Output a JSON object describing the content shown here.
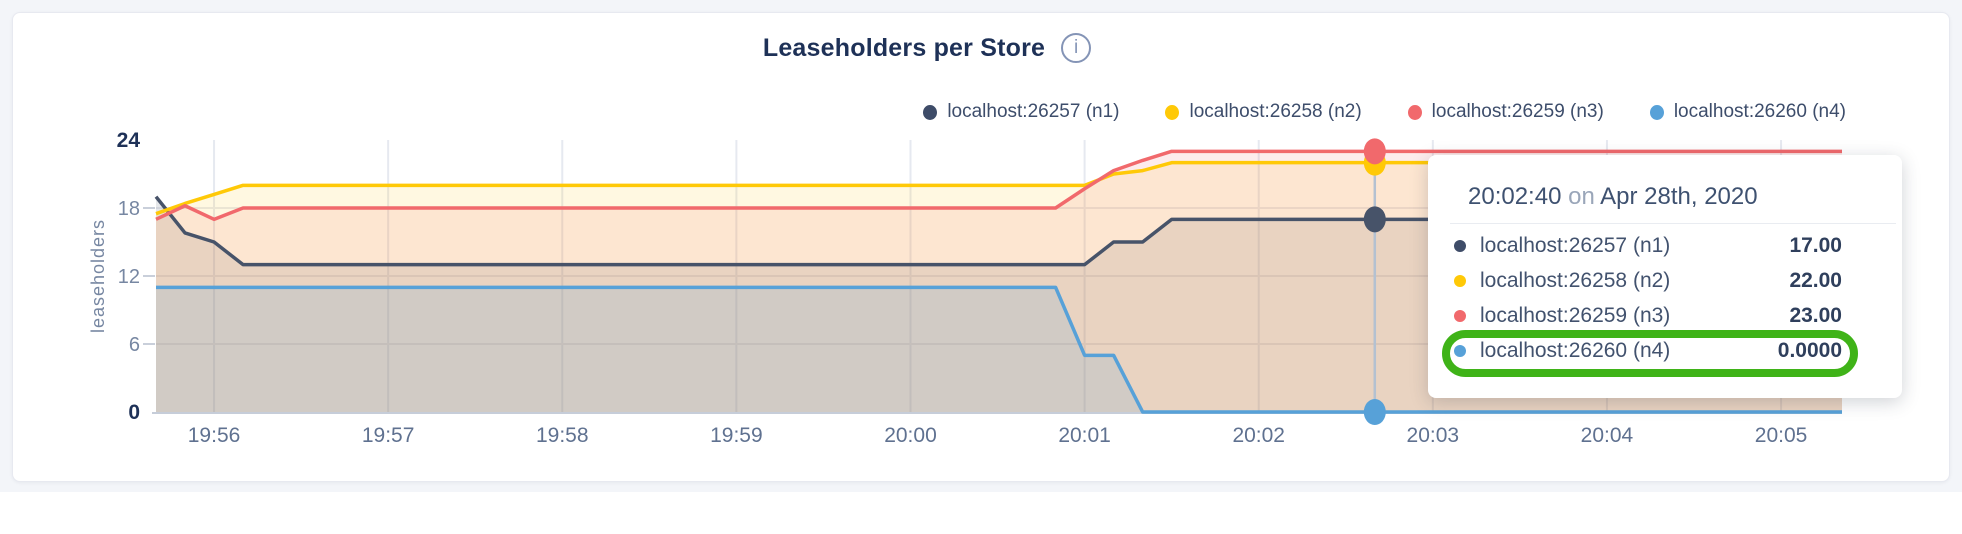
{
  "page": {
    "background": "#f3f5f9"
  },
  "header": {
    "title": "Leaseholders per Store",
    "info_icon": "i"
  },
  "legend": {
    "items": [
      {
        "label": "localhost:26257 (n1)",
        "color": "#3e4c68"
      },
      {
        "label": "localhost:26258 (n2)",
        "color": "#ffc907"
      },
      {
        "label": "localhost:26259 (n3)",
        "color": "#f1696c"
      },
      {
        "label": "localhost:26260 (n4)",
        "color": "#57a1d8"
      }
    ]
  },
  "chart_data": {
    "type": "area",
    "title": "Leaseholders per Store",
    "ylabel": "leaseholders",
    "ylim": [
      0,
      24
    ],
    "grid_on": true,
    "legend_position": "top-right",
    "x_start_time": "19:55:40",
    "x_domain_seconds": [
      0,
      581
    ],
    "y_ticks": [
      {
        "v": 24,
        "label": "24",
        "bold": true
      },
      {
        "v": 18,
        "label": "18",
        "bold": false
      },
      {
        "v": 12,
        "label": "12",
        "bold": false
      },
      {
        "v": 6,
        "label": "6",
        "bold": false
      },
      {
        "v": 0,
        "label": "0",
        "bold": true
      }
    ],
    "grid_y": [
      6,
      12,
      18
    ],
    "x_ticks": [
      {
        "t": 20,
        "label": "19:56"
      },
      {
        "t": 80,
        "label": "19:57"
      },
      {
        "t": 140,
        "label": "19:58"
      },
      {
        "t": 200,
        "label": "19:59"
      },
      {
        "t": 260,
        "label": "20:00"
      },
      {
        "t": 320,
        "label": "20:01"
      },
      {
        "t": 380,
        "label": "20:02"
      },
      {
        "t": 440,
        "label": "20:03"
      },
      {
        "t": 500,
        "label": "20:04"
      },
      {
        "t": 560,
        "label": "20:05"
      }
    ],
    "series": [
      {
        "name": "localhost:26257 (n1)",
        "color": "#475369",
        "fill_opacity": 0.14,
        "points": [
          [
            0,
            19
          ],
          [
            10,
            15.8
          ],
          [
            20,
            15
          ],
          [
            30,
            13
          ],
          [
            320,
            13
          ],
          [
            330,
            15
          ],
          [
            340,
            15
          ],
          [
            350,
            17
          ],
          [
            581,
            17
          ]
        ]
      },
      {
        "name": "localhost:26258 (n2)",
        "color": "#ffc907",
        "fill_opacity": 0.12,
        "points": [
          [
            0,
            17.5
          ],
          [
            10,
            18.4
          ],
          [
            20,
            19.2
          ],
          [
            30,
            20
          ],
          [
            320,
            20
          ],
          [
            330,
            21
          ],
          [
            340,
            21.3
          ],
          [
            350,
            22
          ],
          [
            581,
            22
          ]
        ]
      },
      {
        "name": "localhost:26259 (n3)",
        "color": "#f1696c",
        "fill_opacity": 0.13,
        "points": [
          [
            0,
            17
          ],
          [
            10,
            18.2
          ],
          [
            20,
            17
          ],
          [
            30,
            18
          ],
          [
            310,
            18
          ],
          [
            320,
            19.7
          ],
          [
            330,
            21.3
          ],
          [
            340,
            22.2
          ],
          [
            350,
            23
          ],
          [
            581,
            23
          ]
        ]
      },
      {
        "name": "localhost:26260 (n4)",
        "color": "#57a1d8",
        "fill_opacity": 0.16,
        "points": [
          [
            0,
            11
          ],
          [
            310,
            11
          ],
          [
            320,
            5
          ],
          [
            330,
            5
          ],
          [
            340,
            0
          ],
          [
            581,
            0
          ]
        ]
      }
    ],
    "hover": {
      "t": 420,
      "time_label": "20:02:40",
      "values": [
        17,
        22,
        23,
        0
      ]
    }
  },
  "tooltip": {
    "time": "20:02:40",
    "connector": "on",
    "date": "Apr 28th, 2020",
    "rows": [
      {
        "label": "localhost:26257 (n1)",
        "value": "17.00",
        "color": "#3e4c68",
        "highlighted": false
      },
      {
        "label": "localhost:26258 (n2)",
        "value": "22.00",
        "color": "#ffc907",
        "highlighted": false
      },
      {
        "label": "localhost:26259 (n3)",
        "value": "23.00",
        "color": "#f1696c",
        "highlighted": false
      },
      {
        "label": "localhost:26260 (n4)",
        "value": "0.0000",
        "color": "#57a1d8",
        "highlighted": true
      }
    ],
    "highlight_color": "#3fb318"
  }
}
